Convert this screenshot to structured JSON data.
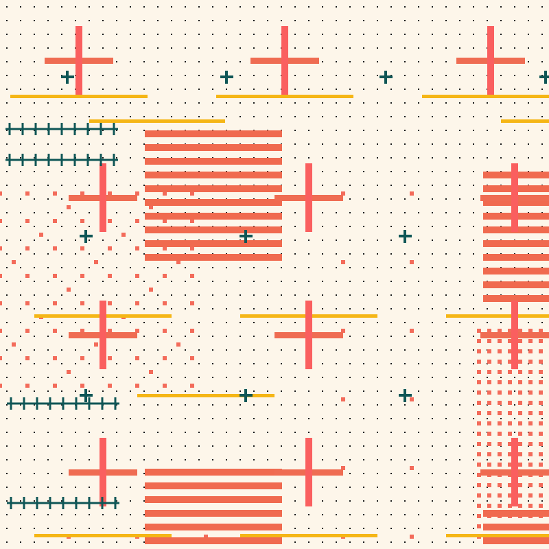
{
  "artwork": {
    "description_free": true,
    "colors": {
      "background": "#fdf6ea",
      "dot": "#1a1a1a",
      "cross_coral": "#fa5f5f",
      "cross_arm": "#ef6c52",
      "stripe": "#f06a4f",
      "line_yellow": "#f5b616",
      "teal": "#0f5656",
      "scatter": "#f36b5a"
    },
    "motifs": [
      "dot-grid",
      "coral-cross",
      "teal-plus",
      "yellow-line",
      "striped-block",
      "teal-plus-chain",
      "square-scatter"
    ]
  }
}
